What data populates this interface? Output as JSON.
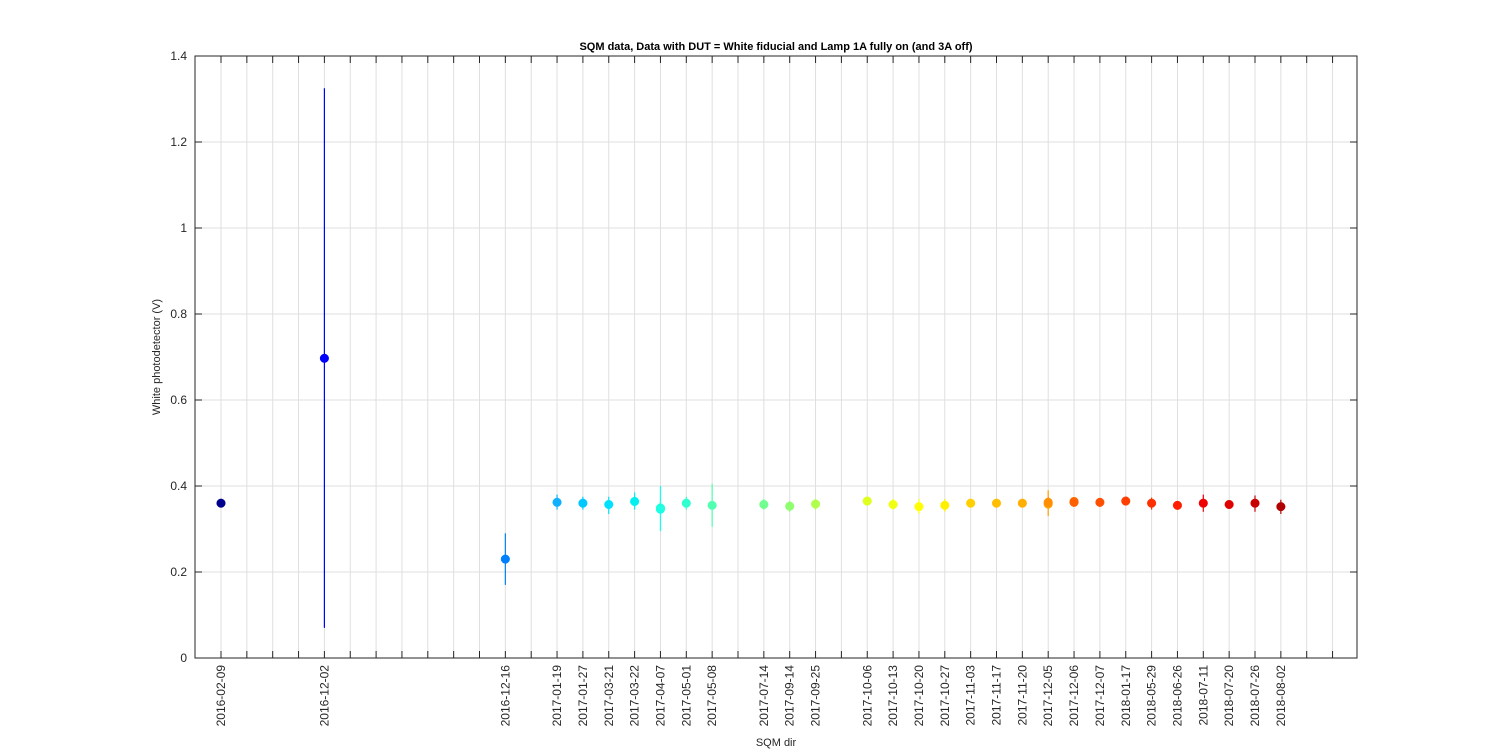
{
  "chart_data": {
    "type": "scatter",
    "title": "SQM data, Data with DUT = White fiducial and Lamp 1A fully on (and 3A off)",
    "xlabel": "SQM dir",
    "ylabel": "White photodetector (V)",
    "ylim": [
      0,
      1.4
    ],
    "yticks": [
      "0",
      "0.2",
      "0.4",
      "0.6",
      "0.8",
      "1",
      "1.2",
      "1.4"
    ],
    "grid": true,
    "colormap": "jet",
    "x_slot_count": 45,
    "tick_labels": [
      {
        "slot": 1,
        "label": "2016-02-09"
      },
      {
        "slot": 5,
        "label": "2016-12-02"
      },
      {
        "slot": 12,
        "label": "2016-12-16"
      },
      {
        "slot": 14,
        "label": "2017-01-19"
      },
      {
        "slot": 15,
        "label": "2017-01-27"
      },
      {
        "slot": 16,
        "label": "2017-03-21"
      },
      {
        "slot": 17,
        "label": "2017-03-22"
      },
      {
        "slot": 18,
        "label": "2017-04-07"
      },
      {
        "slot": 19,
        "label": "2017-05-01"
      },
      {
        "slot": 20,
        "label": "2017-05-08"
      },
      {
        "slot": 22,
        "label": "2017-07-14"
      },
      {
        "slot": 23,
        "label": "2017-09-14"
      },
      {
        "slot": 24,
        "label": "2017-09-25"
      },
      {
        "slot": 26,
        "label": "2017-10-06"
      },
      {
        "slot": 27,
        "label": "2017-10-13"
      },
      {
        "slot": 28,
        "label": "2017-10-20"
      },
      {
        "slot": 29,
        "label": "2017-10-27"
      },
      {
        "slot": 30,
        "label": "2017-11-03"
      },
      {
        "slot": 31,
        "label": "2017-11-17"
      },
      {
        "slot": 32,
        "label": "2017-11-20"
      },
      {
        "slot": 33,
        "label": "2017-12-05"
      },
      {
        "slot": 34,
        "label": "2017-12-06"
      },
      {
        "slot": 35,
        "label": "2017-12-07"
      },
      {
        "slot": 36,
        "label": "2018-01-17"
      },
      {
        "slot": 37,
        "label": "2018-05-29"
      },
      {
        "slot": 38,
        "label": "2018-06-26"
      },
      {
        "slot": 39,
        "label": "2018-07-11"
      },
      {
        "slot": 40,
        "label": "2018-07-20"
      },
      {
        "slot": 41,
        "label": "2018-07-26"
      },
      {
        "slot": 42,
        "label": "2018-08-02"
      }
    ],
    "points": [
      {
        "x": 1,
        "y": 0.36,
        "ylow": 0.355,
        "yhigh": 0.365,
        "color": "#00008f"
      },
      {
        "x": 5,
        "y": 0.697,
        "ylow": 0.07,
        "yhigh": 1.325,
        "color": "#0000ff"
      },
      {
        "x": 12,
        "y": 0.23,
        "ylow": 0.17,
        "yhigh": 0.29,
        "color": "#0080ff"
      },
      {
        "x": 14,
        "y": 0.362,
        "ylow": 0.345,
        "yhigh": 0.38,
        "color": "#10b0ff"
      },
      {
        "x": 15,
        "y": 0.36,
        "ylow": 0.345,
        "yhigh": 0.375,
        "color": "#00c8ff"
      },
      {
        "x": 16,
        "y": 0.357,
        "ylow": 0.335,
        "yhigh": 0.375,
        "color": "#00e0ff"
      },
      {
        "x": 17,
        "y": 0.364,
        "ylow": 0.345,
        "yhigh": 0.385,
        "color": "#00f0f0"
      },
      {
        "x": 18,
        "y": 0.346,
        "ylow": 0.295,
        "yhigh": 0.4,
        "color": "#10ffef"
      },
      {
        "x": 18,
        "y": 0.349,
        "ylow": 0.33,
        "yhigh": 0.365,
        "color": "#20ffdf"
      },
      {
        "x": 19,
        "y": 0.36,
        "ylow": 0.345,
        "yhigh": 0.375,
        "color": "#30ffcf"
      },
      {
        "x": 20,
        "y": 0.355,
        "ylow": 0.305,
        "yhigh": 0.405,
        "color": "#50ffaf"
      },
      {
        "x": 22,
        "y": 0.357,
        "ylow": 0.345,
        "yhigh": 0.37,
        "color": "#70ff8f"
      },
      {
        "x": 23,
        "y": 0.353,
        "ylow": 0.34,
        "yhigh": 0.365,
        "color": "#90ff6f"
      },
      {
        "x": 24,
        "y": 0.358,
        "ylow": 0.345,
        "yhigh": 0.37,
        "color": "#b0ff4f"
      },
      {
        "x": 26,
        "y": 0.365,
        "ylow": 0.355,
        "yhigh": 0.375,
        "color": "#e0ff1f"
      },
      {
        "x": 27,
        "y": 0.357,
        "ylow": 0.345,
        "yhigh": 0.37,
        "color": "#f0ff0f"
      },
      {
        "x": 28,
        "y": 0.352,
        "ylow": 0.335,
        "yhigh": 0.37,
        "color": "#ffff00"
      },
      {
        "x": 29,
        "y": 0.355,
        "ylow": 0.34,
        "yhigh": 0.37,
        "color": "#ffef00"
      },
      {
        "x": 30,
        "y": 0.36,
        "ylow": 0.35,
        "yhigh": 0.37,
        "color": "#ffcf00"
      },
      {
        "x": 31,
        "y": 0.36,
        "ylow": 0.35,
        "yhigh": 0.37,
        "color": "#ffbf00"
      },
      {
        "x": 32,
        "y": 0.36,
        "ylow": 0.35,
        "yhigh": 0.37,
        "color": "#ffaf00"
      },
      {
        "x": 33,
        "y": 0.358,
        "ylow": 0.33,
        "yhigh": 0.39,
        "color": "#ff9f00"
      },
      {
        "x": 33,
        "y": 0.362,
        "ylow": 0.35,
        "yhigh": 0.375,
        "color": "#ff8f00"
      },
      {
        "x": 34,
        "y": 0.364,
        "ylow": 0.355,
        "yhigh": 0.372,
        "color": "#ff7000"
      },
      {
        "x": 34,
        "y": 0.362,
        "ylow": 0.355,
        "yhigh": 0.37,
        "color": "#ff6000"
      },
      {
        "x": 35,
        "y": 0.362,
        "ylow": 0.352,
        "yhigh": 0.372,
        "color": "#ff5000"
      },
      {
        "x": 36,
        "y": 0.365,
        "ylow": 0.355,
        "yhigh": 0.375,
        "color": "#ff3f00"
      },
      {
        "x": 37,
        "y": 0.36,
        "ylow": 0.345,
        "yhigh": 0.373,
        "color": "#ff2f00"
      },
      {
        "x": 38,
        "y": 0.355,
        "ylow": 0.345,
        "yhigh": 0.365,
        "color": "#ff1f00"
      },
      {
        "x": 39,
        "y": 0.36,
        "ylow": 0.34,
        "yhigh": 0.38,
        "color": "#ef0000"
      },
      {
        "x": 40,
        "y": 0.357,
        "ylow": 0.348,
        "yhigh": 0.366,
        "color": "#df0000"
      },
      {
        "x": 41,
        "y": 0.36,
        "ylow": 0.34,
        "yhigh": 0.378,
        "color": "#c80000"
      },
      {
        "x": 42,
        "y": 0.352,
        "ylow": 0.335,
        "yhigh": 0.368,
        "color": "#b00000"
      }
    ]
  }
}
